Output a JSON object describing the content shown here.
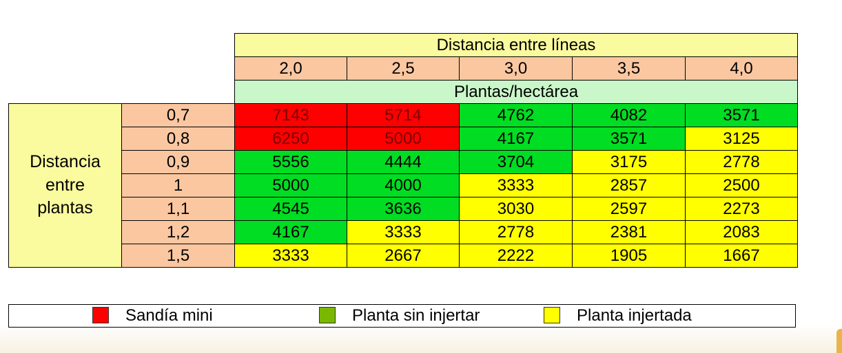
{
  "table": {
    "header": {
      "title": "Distancia entre líneas",
      "columns": [
        "2,0",
        "2,5",
        "3,0",
        "3,5",
        "4,0"
      ],
      "subtitle": "Plantas/hectárea"
    },
    "row_label": [
      "Distancia",
      "entre",
      "plantas"
    ],
    "rows": [
      {
        "label": "0,7",
        "values": [
          "7143",
          "5714",
          "4762",
          "4082",
          "3571"
        ],
        "classes": [
          "red",
          "red",
          "green",
          "green",
          "green"
        ]
      },
      {
        "label": "0,8",
        "values": [
          "6250",
          "5000",
          "4167",
          "3571",
          "3125"
        ],
        "classes": [
          "red",
          "red",
          "green",
          "green",
          "yellow"
        ]
      },
      {
        "label": "0,9",
        "values": [
          "5556",
          "4444",
          "3704",
          "3175",
          "2778"
        ],
        "classes": [
          "green",
          "green",
          "green",
          "yellow",
          "yellow"
        ]
      },
      {
        "label": "1",
        "values": [
          "5000",
          "4000",
          "3333",
          "2857",
          "2500"
        ],
        "classes": [
          "green",
          "green",
          "yellow",
          "yellow",
          "yellow"
        ]
      },
      {
        "label": "1,1",
        "values": [
          "4545",
          "3636",
          "3030",
          "2597",
          "2273"
        ],
        "classes": [
          "green",
          "green",
          "yellow",
          "yellow",
          "yellow"
        ]
      },
      {
        "label": "1,2",
        "values": [
          "4167",
          "3333",
          "2778",
          "2381",
          "2083"
        ],
        "classes": [
          "green",
          "yellow",
          "yellow",
          "yellow",
          "yellow"
        ]
      },
      {
        "label": "1,5",
        "values": [
          "3333",
          "2667",
          "2222",
          "1905",
          "1667"
        ],
        "classes": [
          "yellow",
          "yellow",
          "yellow",
          "yellow",
          "yellow"
        ]
      }
    ]
  },
  "legend": {
    "items": [
      {
        "label": "Sandía mini",
        "color": "#ff0000"
      },
      {
        "label": "Planta sin injertar",
        "color": "#7ab800"
      },
      {
        "label": "Planta injertada",
        "color": "#ffff00"
      }
    ]
  },
  "colors": {
    "red": "#ff0000",
    "green": "#00dd22",
    "yellow": "#ffff00",
    "header_yellow": "#fafa9e",
    "header_peach": "#fbc7a1",
    "header_green": "#c9f7c9"
  }
}
